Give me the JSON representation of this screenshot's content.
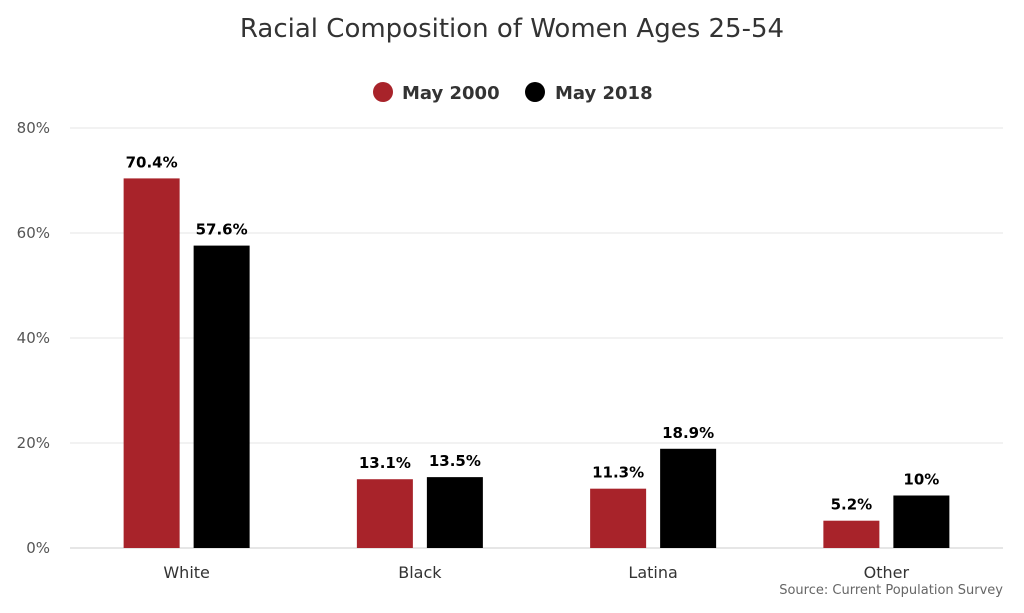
{
  "chart_data": {
    "type": "bar",
    "title": "Racial Composition of Women Ages 25-54",
    "categories": [
      "White",
      "Black",
      "Latina",
      "Other"
    ],
    "series": [
      {
        "name": "May 2000",
        "color": "#a8232a",
        "values": [
          70.4,
          13.1,
          11.3,
          5.2
        ],
        "labels": [
          "70.4%",
          "13.1%",
          "11.3%",
          "5.2%"
        ]
      },
      {
        "name": "May 2018",
        "color": "#000000",
        "values": [
          57.6,
          13.5,
          18.9,
          10
        ],
        "labels": [
          "57.6%",
          "13.5%",
          "18.9%",
          "10%"
        ]
      }
    ],
    "ylim": [
      0,
      80
    ],
    "yticks": [
      0,
      20,
      40,
      60,
      80
    ],
    "ytick_labels": [
      "0%",
      "20%",
      "40%",
      "60%",
      "80%"
    ],
    "grid": true,
    "legend_position": "top-center",
    "source": "Source: Current Population Survey"
  }
}
